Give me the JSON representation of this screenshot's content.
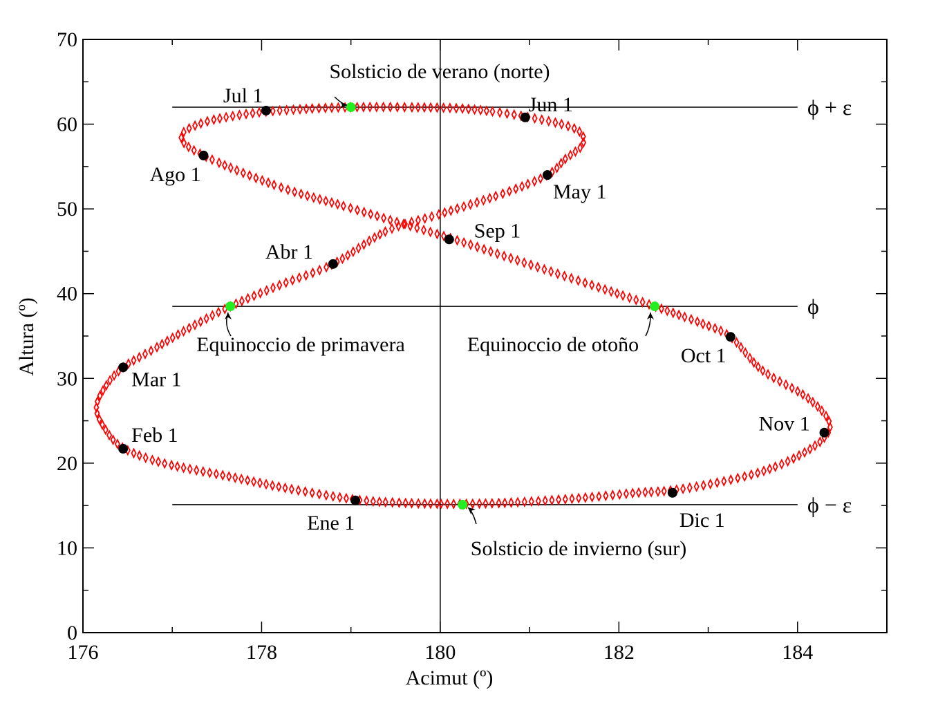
{
  "chart_data": {
    "type": "scatter",
    "title": "",
    "xlabel": "Acimut (º)",
    "ylabel": "Altura (º)",
    "xlim": [
      176,
      185
    ],
    "ylim": [
      0,
      70
    ],
    "x_ticks": [
      176,
      178,
      180,
      182,
      184
    ],
    "y_ticks": [
      0,
      10,
      20,
      30,
      40,
      50,
      60,
      70
    ],
    "x_tick_labels": [
      "176",
      "178",
      "180",
      "182",
      "184"
    ],
    "y_tick_labels": [
      "0",
      "10",
      "20",
      "30",
      "40",
      "50",
      "60",
      "70"
    ],
    "grid": false,
    "vertical_line_x": 180,
    "reference_lines": [
      {
        "label": "ϕ + ε",
        "y": 62.0,
        "x_range": [
          177.0,
          184.0
        ]
      },
      {
        "label": "ϕ",
        "y": 38.5,
        "x_range": [
          177.0,
          184.0
        ]
      },
      {
        "label": "ϕ − ε",
        "y": 15.1,
        "x_range": [
          177.0,
          184.0
        ]
      }
    ],
    "analemma_color": "#ff0000",
    "month_marker_color": "#000000",
    "event_marker_color": "#22ee22",
    "analemma_points": [
      {
        "x": 180.0,
        "y": 15.2
      },
      {
        "x": 180.3,
        "y": 15.2
      },
      {
        "x": 180.7,
        "y": 15.3
      },
      {
        "x": 181.2,
        "y": 15.6
      },
      {
        "x": 181.7,
        "y": 16.0
      },
      {
        "x": 182.2,
        "y": 16.5
      },
      {
        "x": 182.6,
        "y": 16.8
      },
      {
        "x": 183.1,
        "y": 17.7
      },
      {
        "x": 183.6,
        "y": 19.0
      },
      {
        "x": 184.0,
        "y": 20.8
      },
      {
        "x": 184.3,
        "y": 23.0
      },
      {
        "x": 184.35,
        "y": 25.0
      },
      {
        "x": 184.1,
        "y": 27.8
      },
      {
        "x": 183.6,
        "y": 31.0
      },
      {
        "x": 183.25,
        "y": 34.9
      },
      {
        "x": 182.9,
        "y": 36.6
      },
      {
        "x": 182.4,
        "y": 38.5
      },
      {
        "x": 181.9,
        "y": 40.3
      },
      {
        "x": 181.3,
        "y": 42.4
      },
      {
        "x": 180.7,
        "y": 44.5
      },
      {
        "x": 180.1,
        "y": 46.6
      },
      {
        "x": 179.5,
        "y": 48.5
      },
      {
        "x": 178.9,
        "y": 50.4
      },
      {
        "x": 178.2,
        "y": 52.6
      },
      {
        "x": 177.35,
        "y": 56.3
      },
      {
        "x": 177.1,
        "y": 58.5
      },
      {
        "x": 177.35,
        "y": 60.2
      },
      {
        "x": 177.9,
        "y": 61.3
      },
      {
        "x": 178.5,
        "y": 61.8
      },
      {
        "x": 179.0,
        "y": 62.0
      },
      {
        "x": 179.6,
        "y": 62.0
      },
      {
        "x": 180.3,
        "y": 61.8
      },
      {
        "x": 180.95,
        "y": 60.9
      },
      {
        "x": 181.5,
        "y": 59.5
      },
      {
        "x": 181.6,
        "y": 57.7
      },
      {
        "x": 181.4,
        "y": 55.9
      },
      {
        "x": 181.2,
        "y": 54.0
      },
      {
        "x": 180.7,
        "y": 51.8
      },
      {
        "x": 180.0,
        "y": 49.4
      },
      {
        "x": 179.4,
        "y": 47.4
      },
      {
        "x": 178.8,
        "y": 43.5
      },
      {
        "x": 178.2,
        "y": 41.0
      },
      {
        "x": 177.65,
        "y": 38.5
      },
      {
        "x": 177.2,
        "y": 36.0
      },
      {
        "x": 176.8,
        "y": 33.5
      },
      {
        "x": 176.45,
        "y": 31.3
      },
      {
        "x": 176.25,
        "y": 29.0
      },
      {
        "x": 176.15,
        "y": 26.5
      },
      {
        "x": 176.25,
        "y": 24.0
      },
      {
        "x": 176.45,
        "y": 21.8
      },
      {
        "x": 176.9,
        "y": 20.0
      },
      {
        "x": 177.6,
        "y": 18.5
      },
      {
        "x": 178.3,
        "y": 17.0
      },
      {
        "x": 179.05,
        "y": 15.7
      },
      {
        "x": 179.6,
        "y": 15.3
      },
      {
        "x": 180.0,
        "y": 15.2
      }
    ],
    "month_markers": [
      {
        "label": "Ene 1",
        "x": 179.05,
        "y": 15.6
      },
      {
        "label": "Feb 1",
        "x": 176.45,
        "y": 21.7
      },
      {
        "label": "Mar 1",
        "x": 176.45,
        "y": 31.3
      },
      {
        "label": "Abr 1",
        "x": 178.8,
        "y": 43.5
      },
      {
        "label": "May 1",
        "x": 181.2,
        "y": 54.0
      },
      {
        "label": "Jun 1",
        "x": 180.95,
        "y": 60.8
      },
      {
        "label": "Jul 1",
        "x": 178.05,
        "y": 61.6
      },
      {
        "label": "Ago 1",
        "x": 177.35,
        "y": 56.3
      },
      {
        "label": "Sep 1",
        "x": 180.1,
        "y": 46.4
      },
      {
        "label": "Oct 1",
        "x": 183.25,
        "y": 34.9
      },
      {
        "label": "Nov 1",
        "x": 184.3,
        "y": 23.6
      },
      {
        "label": "Dic 1",
        "x": 182.6,
        "y": 16.5
      }
    ],
    "event_markers": [
      {
        "label": "Solsticio de verano (norte)",
        "x": 179.0,
        "y": 62.0
      },
      {
        "label": "Equinoccio de primavera",
        "x": 177.65,
        "y": 38.5
      },
      {
        "label": "Equinoccio de otoño",
        "x": 182.4,
        "y": 38.5
      },
      {
        "label": "Solsticio de invierno (sur)",
        "x": 180.25,
        "y": 15.1
      }
    ]
  }
}
